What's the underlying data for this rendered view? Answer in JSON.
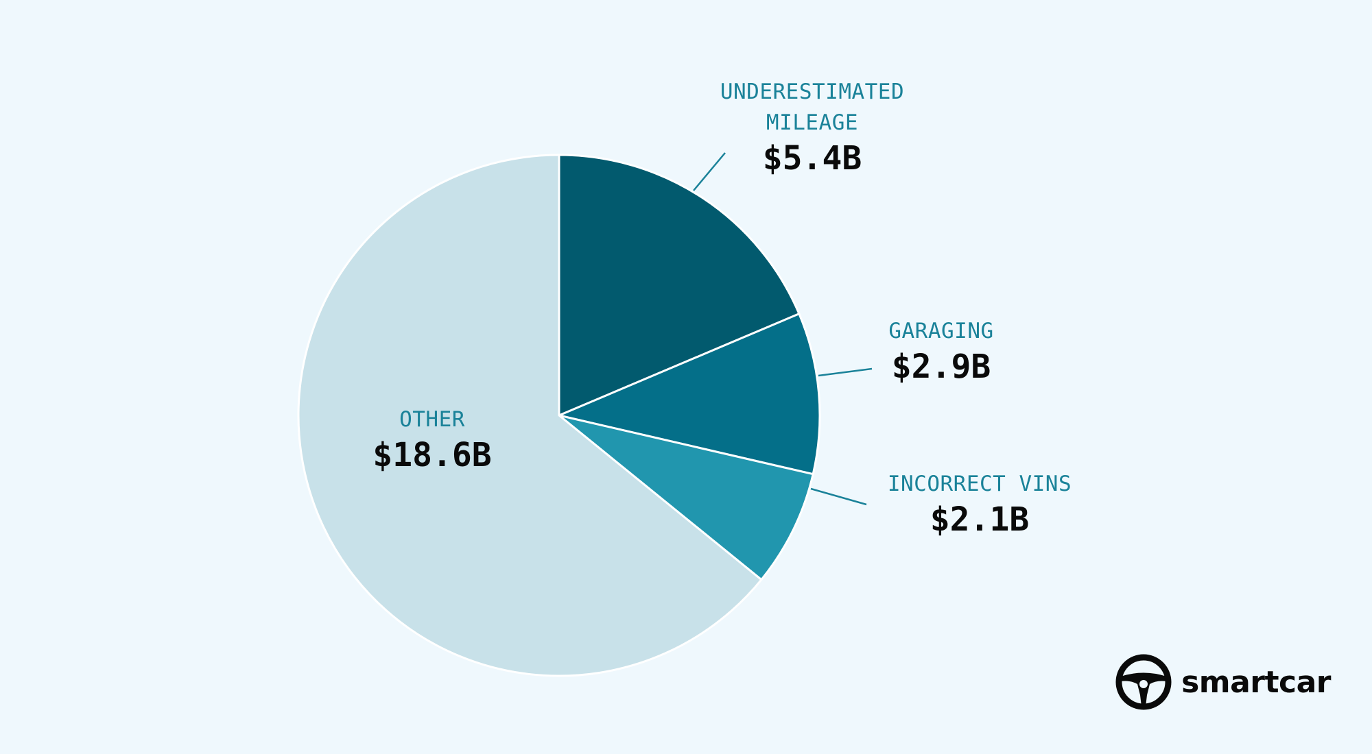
{
  "chart_data": {
    "type": "pie",
    "title": "",
    "unit": "$B",
    "start_angle": "12 o'clock, clockwise",
    "slices": [
      {
        "category": "UNDERESTIMATED MILEAGE",
        "label_lines": [
          "UNDERESTIMATED",
          "MILEAGE"
        ],
        "value": 5.4,
        "value_label": "$5.4B",
        "color": "#025a6e"
      },
      {
        "category": "GARAGING",
        "label_lines": [
          "GARAGING"
        ],
        "value": 2.9,
        "value_label": "$2.9B",
        "color": "#046f89"
      },
      {
        "category": "INCORRECT VINS",
        "label_lines": [
          "INCORRECT VINS"
        ],
        "value": 2.1,
        "value_label": "$2.1B",
        "color": "#2196ae"
      },
      {
        "category": "OTHER",
        "label_lines": [
          "OTHER"
        ],
        "value": 18.6,
        "value_label": "$18.6B",
        "color": "#c8e1e9"
      }
    ],
    "label_color": "#1a8299",
    "value_color": "#0a0a0a",
    "background": "#eff8fd"
  },
  "brand": {
    "name": "smartcar",
    "icon": "steering-wheel-icon"
  }
}
